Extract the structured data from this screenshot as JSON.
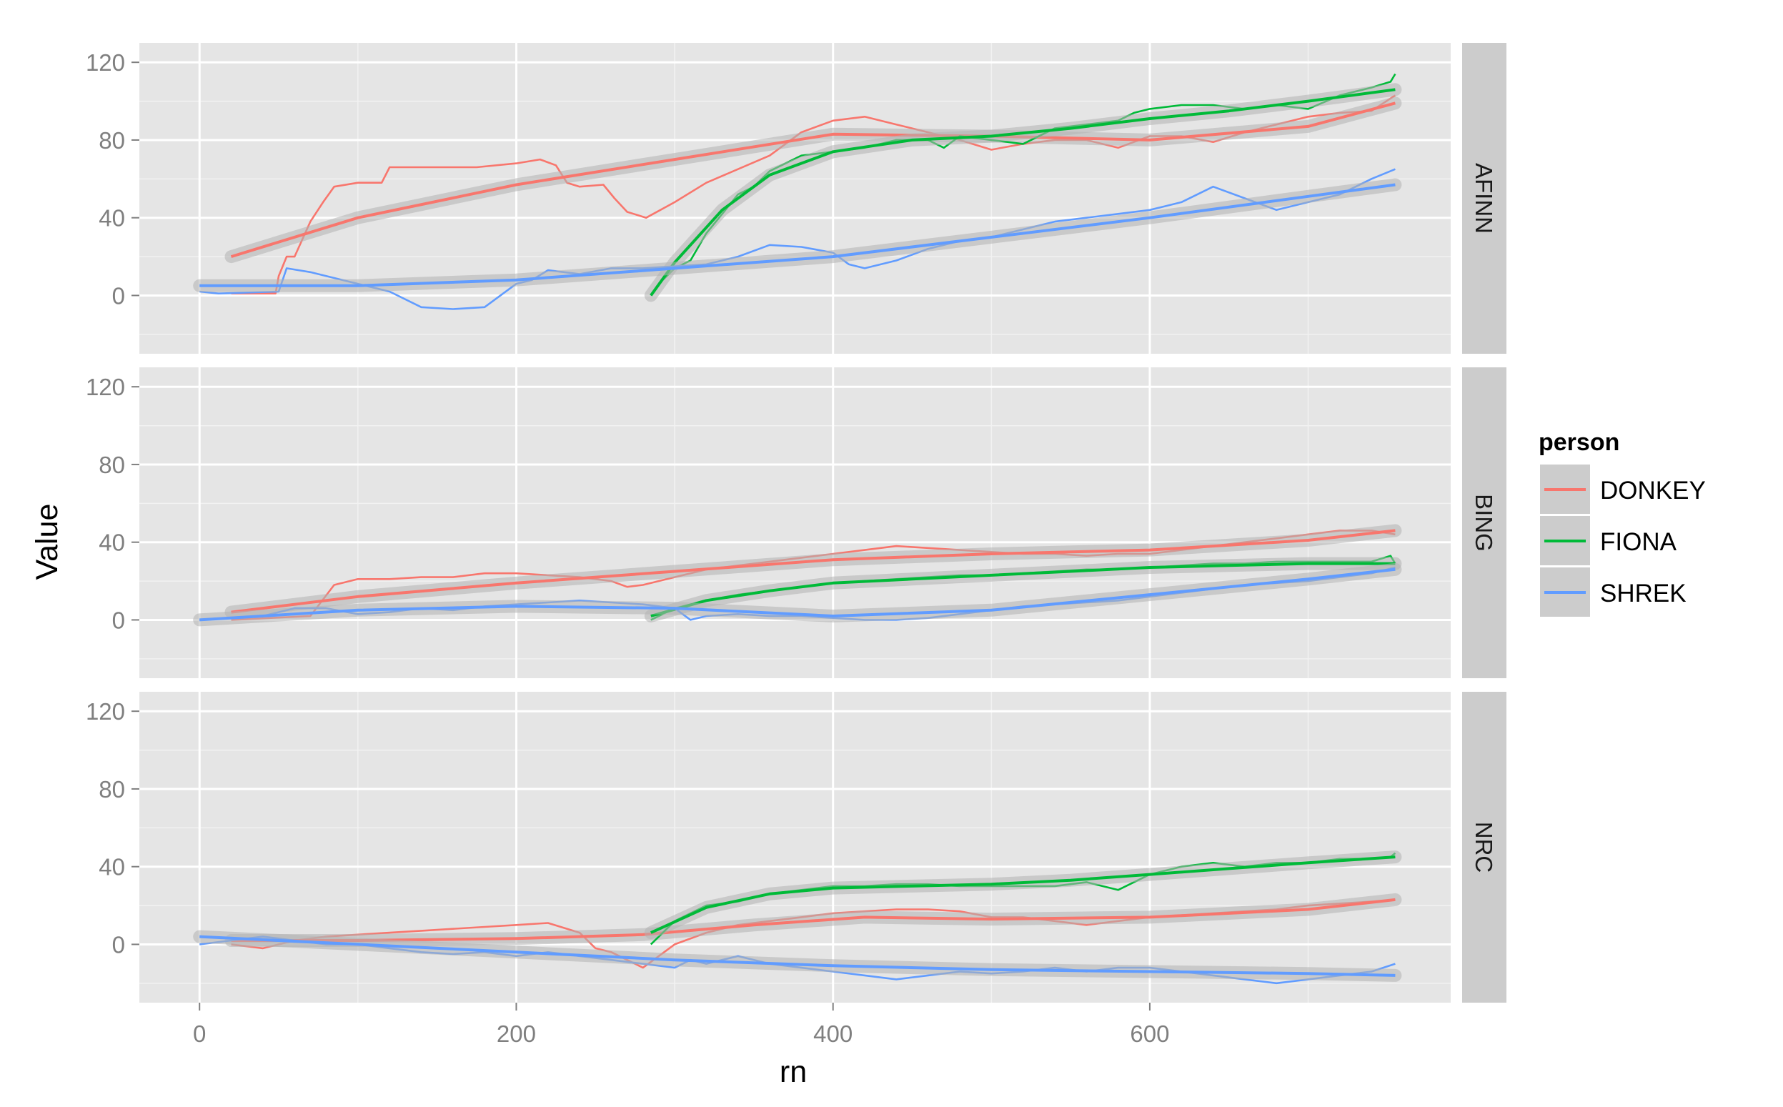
{
  "chart_data": {
    "type": "line",
    "xlabel": "rn",
    "ylabel": "Value",
    "xlim": [
      -38,
      790
    ],
    "ylim": [
      -30,
      130
    ],
    "x_ticks": [
      0,
      200,
      400,
      600
    ],
    "y_ticks": [
      0,
      40,
      80,
      120
    ],
    "grid": true,
    "legend": {
      "title": "person",
      "position": "right",
      "entries": [
        "DONKEY",
        "FIONA",
        "SHREK"
      ]
    },
    "colors": {
      "DONKEY": "#F8766D",
      "FIONA": "#00BA38",
      "SHREK": "#619CFF",
      "smooth_band": "#b3b3b3"
    },
    "facets": [
      {
        "label": "AFINN",
        "series": [
          {
            "name": "DONKEY",
            "x": [
              20,
              48,
              50,
              55,
              60,
              70,
              78,
              85,
              100,
              115,
              120,
              140,
              160,
              175,
              200,
              215,
              225,
              232,
              240,
              255,
              262,
              270,
              282,
              300,
              320,
              340,
              360,
              380,
              400,
              420,
              440,
              460,
              480,
              500,
              520,
              540,
              560,
              580,
              600,
              620,
              640,
              660,
              680,
              700,
              720,
              740,
              755
            ],
            "y": [
              1,
              1,
              10,
              20,
              20,
              38,
              48,
              56,
              58,
              58,
              66,
              66,
              66,
              66,
              68,
              70,
              67,
              58,
              56,
              57,
              50,
              43,
              40,
              48,
              58,
              65,
              72,
              84,
              90,
              92,
              88,
              84,
              80,
              75,
              78,
              80,
              80,
              76,
              82,
              82,
              79,
              84,
              88,
              92,
              94,
              95,
              103
            ]
          },
          {
            "name": "DONKEY smooth",
            "x": [
              20,
              100,
              200,
              300,
              400,
              500,
              600,
              700,
              755
            ],
            "y": [
              20,
              40,
              57,
              70,
              83,
              82,
              80,
              87,
              99
            ]
          },
          {
            "name": "FIONA",
            "x": [
              285,
              290,
              300,
              310,
              320,
              330,
              340,
              350,
              360,
              380,
              400,
              420,
              440,
              460,
              470,
              480,
              500,
              520,
              540,
              560,
              580,
              590,
              600,
              620,
              640,
              660,
              680,
              700,
              720,
              740,
              752,
              755
            ],
            "y": [
              0,
              6,
              14,
              18,
              32,
              42,
              52,
              56,
              64,
              72,
              74,
              76,
              80,
              80,
              76,
              82,
              80,
              78,
              86,
              88,
              90,
              94,
              96,
              98,
              98,
              96,
              98,
              96,
              103,
              107,
              110,
              114
            ]
          },
          {
            "name": "FIONA smooth",
            "x": [
              285,
              300,
              330,
              360,
              400,
              450,
              500,
              550,
              600,
              650,
              700,
              755
            ],
            "y": [
              0,
              17,
              44,
              62,
              74,
              80,
              82,
              86,
              91,
              95,
              100,
              106
            ]
          },
          {
            "name": "SHREK",
            "x": [
              0,
              12,
              50,
              55,
              70,
              80,
              100,
              120,
              140,
              160,
              180,
              200,
              210,
              220,
              240,
              260,
              280,
              300,
              320,
              340,
              360,
              380,
              400,
              410,
              420,
              440,
              460,
              480,
              500,
              520,
              540,
              560,
              580,
              600,
              610,
              620,
              640,
              660,
              680,
              700,
              720,
              740,
              755
            ],
            "y": [
              2,
              1,
              2,
              14,
              12,
              10,
              6,
              2,
              -6,
              -7,
              -6,
              6,
              8,
              13,
              11,
              14,
              14,
              15,
              16,
              20,
              26,
              25,
              22,
              16,
              14,
              18,
              24,
              28,
              30,
              34,
              38,
              40,
              42,
              44,
              46,
              48,
              56,
              50,
              44,
              48,
              52,
              60,
              65
            ]
          },
          {
            "name": "SHREK smooth",
            "x": [
              0,
              100,
              200,
              300,
              400,
              500,
              600,
              700,
              755
            ],
            "y": [
              5,
              5,
              8,
              14,
              20,
              30,
              40,
              51,
              57
            ]
          }
        ]
      },
      {
        "label": "BING",
        "series": [
          {
            "name": "DONKEY",
            "x": [
              20,
              70,
              85,
              100,
              120,
              140,
              160,
              180,
              200,
              220,
              240,
              260,
              270,
              280,
              300,
              320,
              340,
              360,
              380,
              400,
              420,
              440,
              460,
              480,
              500,
              520,
              540,
              560,
              580,
              600,
              620,
              640,
              660,
              680,
              700,
              720,
              740,
              755
            ],
            "y": [
              0,
              2,
              18,
              21,
              21,
              22,
              22,
              24,
              24,
              23,
              22,
              20,
              17,
              18,
              22,
              26,
              28,
              30,
              32,
              34,
              36,
              38,
              37,
              36,
              35,
              34,
              34,
              33,
              34,
              34,
              36,
              38,
              40,
              42,
              44,
              46,
              46,
              44
            ]
          },
          {
            "name": "DONKEY smooth",
            "x": [
              20,
              100,
              200,
              300,
              400,
              500,
              600,
              700,
              755
            ],
            "y": [
              4,
              12,
              19,
              25,
              31,
              34,
              36,
              41,
              46
            ]
          },
          {
            "name": "FIONA",
            "x": [
              285,
              300,
              320,
              340,
              360,
              380,
              400,
              420,
              440,
              460,
              480,
              500,
              520,
              540,
              560,
              580,
              600,
              620,
              640,
              660,
              680,
              700,
              720,
              740,
              752,
              755
            ],
            "y": [
              0,
              6,
              10,
              13,
              15,
              17,
              19,
              20,
              21,
              22,
              23,
              23,
              24,
              25,
              26,
              26,
              27,
              28,
              29,
              29,
              30,
              30,
              30,
              30,
              33,
              29
            ]
          },
          {
            "name": "FIONA smooth",
            "x": [
              285,
              320,
              360,
              400,
              450,
              500,
              550,
              600,
              650,
              700,
              755
            ],
            "y": [
              2,
              10,
              15,
              19,
              21,
              23,
              25,
              27,
              28,
              29,
              29
            ]
          },
          {
            "name": "SHREK",
            "x": [
              0,
              40,
              60,
              80,
              100,
              120,
              140,
              160,
              180,
              200,
              220,
              240,
              260,
              280,
              300,
              310,
              320,
              340,
              360,
              380,
              400,
              420,
              440,
              460,
              480,
              500,
              520,
              540,
              560,
              580,
              600,
              620,
              640,
              660,
              680,
              700,
              720,
              740,
              755
            ],
            "y": [
              0,
              2,
              6,
              6,
              3,
              4,
              6,
              5,
              7,
              8,
              9,
              10,
              9,
              8,
              6,
              0,
              2,
              3,
              2,
              2,
              1,
              0,
              0,
              1,
              3,
              5,
              7,
              8,
              9,
              10,
              12,
              14,
              16,
              18,
              19,
              20,
              22,
              24,
              27
            ]
          },
          {
            "name": "SHREK smooth",
            "x": [
              0,
              100,
              200,
              300,
              400,
              500,
              600,
              700,
              755
            ],
            "y": [
              0,
              5,
              7,
              6,
              2,
              5,
              13,
              21,
              26
            ]
          }
        ]
      },
      {
        "label": "NRC",
        "series": [
          {
            "name": "DONKEY",
            "x": [
              20,
              40,
              60,
              80,
              100,
              120,
              140,
              160,
              180,
              200,
              220,
              240,
              250,
              260,
              270,
              280,
              290,
              300,
              320,
              340,
              360,
              380,
              400,
              420,
              440,
              460,
              480,
              500,
              520,
              540,
              560,
              580,
              600,
              620,
              640,
              660,
              680,
              700,
              720,
              740,
              755
            ],
            "y": [
              0,
              -2,
              2,
              4,
              5,
              6,
              7,
              8,
              9,
              10,
              11,
              6,
              -2,
              -4,
              -8,
              -12,
              -6,
              0,
              6,
              10,
              12,
              14,
              16,
              17,
              18,
              18,
              17,
              14,
              14,
              12,
              10,
              12,
              14,
              15,
              16,
              17,
              18,
              20,
              21,
              22,
              23
            ]
          },
          {
            "name": "DONKEY smooth",
            "x": [
              20,
              100,
              200,
              280,
              350,
              420,
              500,
              600,
              700,
              755
            ],
            "y": [
              2,
              2,
              3,
              5,
              10,
              14,
              13,
              14,
              18,
              23
            ]
          },
          {
            "name": "FIONA",
            "x": [
              285,
              300,
              320,
              340,
              360,
              380,
              400,
              420,
              440,
              460,
              480,
              500,
              520,
              540,
              560,
              580,
              600,
              620,
              640,
              660,
              680,
              700,
              720,
              740,
              752,
              755
            ],
            "y": [
              0,
              12,
              20,
              22,
              26,
              28,
              30,
              30,
              31,
              31,
              30,
              30,
              30,
              30,
              32,
              28,
              36,
              40,
              42,
              40,
              42,
              42,
              44,
              44,
              45,
              47
            ]
          },
          {
            "name": "FIONA smooth",
            "x": [
              285,
              320,
              360,
              400,
              450,
              500,
              550,
              600,
              650,
              700,
              755
            ],
            "y": [
              6,
              19,
              26,
              29,
              30,
              31,
              33,
              36,
              39,
              42,
              45
            ]
          },
          {
            "name": "SHREK",
            "x": [
              0,
              20,
              40,
              60,
              80,
              100,
              120,
              140,
              160,
              180,
              200,
              220,
              240,
              260,
              280,
              300,
              310,
              320,
              340,
              360,
              380,
              400,
              420,
              440,
              460,
              480,
              500,
              520,
              540,
              560,
              580,
              600,
              620,
              640,
              660,
              680,
              700,
              720,
              740,
              755
            ],
            "y": [
              0,
              2,
              4,
              2,
              0,
              0,
              -2,
              -4,
              -5,
              -4,
              -6,
              -4,
              -6,
              -8,
              -10,
              -12,
              -8,
              -10,
              -6,
              -10,
              -12,
              -14,
              -16,
              -18,
              -16,
              -14,
              -15,
              -14,
              -12,
              -14,
              -12,
              -12,
              -14,
              -16,
              -18,
              -20,
              -18,
              -16,
              -14,
              -10
            ]
          },
          {
            "name": "SHREK smooth",
            "x": [
              0,
              100,
              200,
              300,
              400,
              500,
              600,
              700,
              755
            ],
            "y": [
              4,
              0,
              -4,
              -8,
              -11,
              -13,
              -14,
              -15,
              -16
            ]
          }
        ]
      }
    ]
  }
}
